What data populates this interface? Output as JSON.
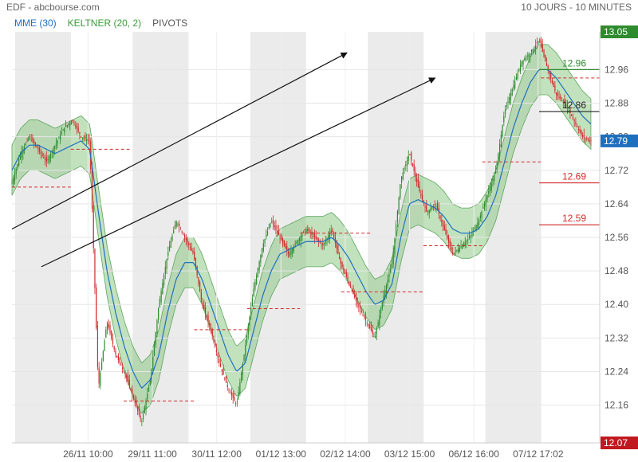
{
  "header": {
    "title": "EDF - abcbourse.com",
    "period": "10 JOURS - 10 MINUTES"
  },
  "legend": [
    {
      "label": "MME (30)",
      "color": "#1f6fbf"
    },
    {
      "label": "KELTNER (20, 2)",
      "color": "#3a9a3a"
    },
    {
      "label": "PIVOTS",
      "color": "#555555"
    }
  ],
  "chart_data": {
    "type": "line",
    "ylim": [
      12.07,
      13.05
    ],
    "y_ticks": [
      12.16,
      12.24,
      12.32,
      12.4,
      12.48,
      12.56,
      12.64,
      12.72,
      12.8,
      12.88,
      12.96
    ],
    "x_ticks": [
      "26/11 10:00",
      "29/11 11:00",
      "30/11 12:00",
      "01/12 13:00",
      "02/12 14:00",
      "03/12 15:00",
      "06/12 16:00",
      "07/12 17:02"
    ],
    "last_price": "12.79",
    "max_label": "13.05",
    "min_label": "12.07",
    "price_path": [
      12.69,
      12.76,
      12.8,
      12.77,
      12.74,
      12.78,
      12.82,
      12.84,
      12.8,
      12.79,
      12.2,
      12.36,
      12.28,
      12.24,
      12.18,
      12.12,
      12.22,
      12.4,
      12.52,
      12.6,
      12.56,
      12.52,
      12.4,
      12.34,
      12.26,
      12.2,
      12.16,
      12.3,
      12.44,
      12.54,
      12.6,
      12.56,
      12.52,
      12.55,
      12.58,
      12.56,
      12.54,
      12.58,
      12.5,
      12.45,
      12.4,
      12.36,
      12.32,
      12.42,
      12.5,
      12.7,
      12.76,
      12.68,
      12.62,
      12.64,
      12.58,
      12.52,
      12.54,
      12.56,
      12.6,
      12.66,
      12.72,
      12.86,
      12.92,
      12.98,
      13.0,
      13.03,
      12.96,
      12.9,
      12.88,
      12.84,
      12.8,
      12.79
    ],
    "ema_path": [
      12.72,
      12.76,
      12.78,
      12.78,
      12.77,
      12.76,
      12.77,
      12.78,
      12.79,
      12.77,
      12.62,
      12.48,
      12.38,
      12.3,
      12.24,
      12.2,
      12.22,
      12.28,
      12.38,
      12.46,
      12.5,
      12.5,
      12.46,
      12.4,
      12.34,
      12.28,
      12.24,
      12.26,
      12.34,
      12.42,
      12.48,
      12.52,
      12.53,
      12.54,
      12.55,
      12.55,
      12.55,
      12.56,
      12.54,
      12.51,
      12.47,
      12.43,
      12.4,
      12.41,
      12.45,
      12.56,
      12.64,
      12.65,
      12.64,
      12.63,
      12.61,
      12.58,
      12.57,
      12.57,
      12.58,
      12.61,
      12.66,
      12.74,
      12.82,
      12.88,
      12.93,
      12.96,
      12.96,
      12.94,
      12.91,
      12.88,
      12.85,
      12.83
    ],
    "pivots": [
      {
        "value": 12.68,
        "from": 0.0,
        "to": 0.1
      },
      {
        "value": 12.77,
        "from": 0.1,
        "to": 0.2
      },
      {
        "value": 12.17,
        "from": 0.19,
        "to": 0.31
      },
      {
        "value": 12.34,
        "from": 0.31,
        "to": 0.4
      },
      {
        "value": 12.39,
        "from": 0.4,
        "to": 0.49
      },
      {
        "value": 12.57,
        "from": 0.49,
        "to": 0.61
      },
      {
        "value": 12.43,
        "from": 0.56,
        "to": 0.7
      },
      {
        "value": 12.54,
        "from": 0.7,
        "to": 0.8
      },
      {
        "value": 12.74,
        "from": 0.8,
        "to": 0.9
      },
      {
        "value": 12.94,
        "from": 0.9,
        "to": 1.0
      }
    ],
    "levels": [
      {
        "label": "12.96",
        "value": 12.96,
        "color": "#2e8b2e"
      },
      {
        "label": "12.86",
        "value": 12.86,
        "color": "#222222"
      },
      {
        "label": "12.69",
        "value": 12.69,
        "color": "#d22a2a"
      },
      {
        "label": "12.59",
        "value": 12.59,
        "color": "#d22a2a"
      }
    ],
    "trendlines": [
      {
        "from": [
          0.0,
          12.58
        ],
        "to": [
          0.57,
          13.0
        ]
      },
      {
        "from": [
          0.05,
          12.49
        ],
        "to": [
          0.72,
          12.94
        ]
      }
    ]
  }
}
